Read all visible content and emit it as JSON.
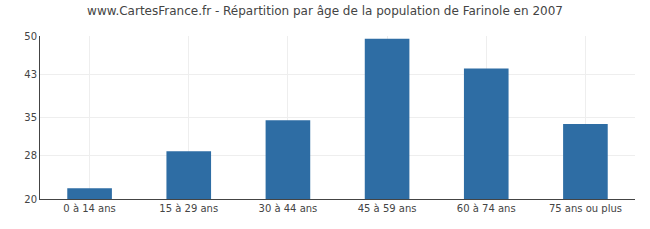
{
  "chart_data": {
    "type": "bar",
    "title": "www.CartesFrance.fr - Répartition par âge de la population de Farinole en 2007",
    "categories": [
      "0 à 14 ans",
      "15 à 29 ans",
      "30 à 44 ans",
      "45 à 59 ans",
      "60 à 74 ans",
      "75 ans ou plus"
    ],
    "values": [
      22.0,
      28.8,
      34.5,
      49.5,
      44.0,
      33.8
    ],
    "color": "#2e6da4",
    "ylim": [
      20,
      50
    ],
    "yticks": [
      20,
      28,
      35,
      43,
      50
    ],
    "grid": true
  }
}
